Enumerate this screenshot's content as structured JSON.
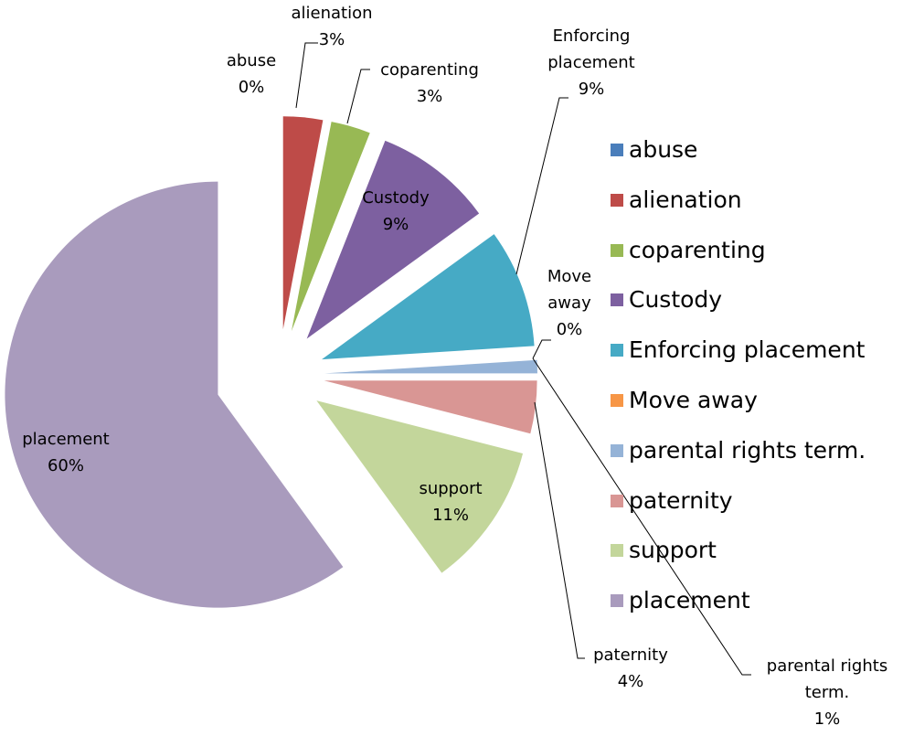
{
  "chart_data": {
    "type": "pie",
    "categories": [
      "abuse",
      "alienation",
      "coparenting",
      "Custody",
      "Enforcing placement",
      "Move away",
      "parental rights term.",
      "paternity",
      "support",
      "placement"
    ],
    "values": [
      0,
      3,
      3,
      9,
      9,
      0,
      1,
      4,
      11,
      60
    ],
    "value_labels": [
      "0%",
      "3%",
      "3%",
      "9%",
      "9%",
      "0%",
      "1%",
      "4%",
      "11%",
      "60%"
    ],
    "colors": [
      "#4a7ebb",
      "#be4b48",
      "#98b954",
      "#7d60a0",
      "#46aac5",
      "#f79646",
      "#95b3d7",
      "#d99694",
      "#c3d69b",
      "#a99bbd"
    ],
    "legend": "right"
  }
}
